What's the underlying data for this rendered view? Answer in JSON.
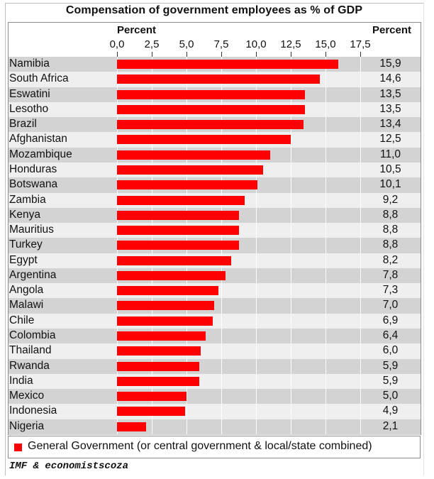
{
  "chart_data": {
    "type": "bar",
    "orientation": "horizontal",
    "title": "Compensation of government employees as % of GDP",
    "xlabel": "Percent",
    "value_column_header": "Percent",
    "xlim": [
      0,
      17.5
    ],
    "xticks": [
      "0,0",
      "2,5",
      "5,0",
      "7,5",
      "10,0",
      "12,5",
      "15,0",
      "17,5"
    ],
    "xtick_values": [
      0,
      2.5,
      5,
      7.5,
      10,
      12.5,
      15,
      17.5
    ],
    "grid": true,
    "legend_position": "bottom",
    "categories": [
      "Namibia",
      "South Africa",
      "Eswatini",
      "Lesotho",
      "Brazil",
      "Afghanistan",
      "Mozambique",
      "Honduras",
      "Botswana",
      "Zambia",
      "Kenya",
      "Mauritius",
      "Turkey",
      "Egypt",
      "Argentina",
      "Angola",
      "Malawi",
      "Chile",
      "Colombia",
      "Thailand",
      "Rwanda",
      "India",
      "Mexico",
      "Indonesia",
      "Nigeria"
    ],
    "series": [
      {
        "name": "General Government (or central government & local/state combined)",
        "color": "#ff0000",
        "values": [
          15.9,
          14.6,
          13.5,
          13.5,
          13.4,
          12.5,
          11.0,
          10.5,
          10.1,
          9.2,
          8.8,
          8.8,
          8.8,
          8.2,
          7.8,
          7.3,
          7.0,
          6.9,
          6.4,
          6.0,
          5.9,
          5.9,
          5.0,
          4.9,
          2.1
        ]
      }
    ],
    "value_labels": [
      "15,9",
      "14,6",
      "13,5",
      "13,5",
      "13,4",
      "12,5",
      "11,0",
      "10,5",
      "10,1",
      "9,2",
      "8,8",
      "8,8",
      "8,8",
      "8,2",
      "7,8",
      "7,3",
      "7,0",
      "6,9",
      "6,4",
      "6,0",
      "5,9",
      "5,9",
      "5,0",
      "4,9",
      "2,1"
    ],
    "band_colors": [
      "#d3d3d3",
      "#efefef"
    ]
  },
  "legend": {
    "label": "General Government (or central government & local/state combined)"
  },
  "source": "IMF & economistscoza"
}
